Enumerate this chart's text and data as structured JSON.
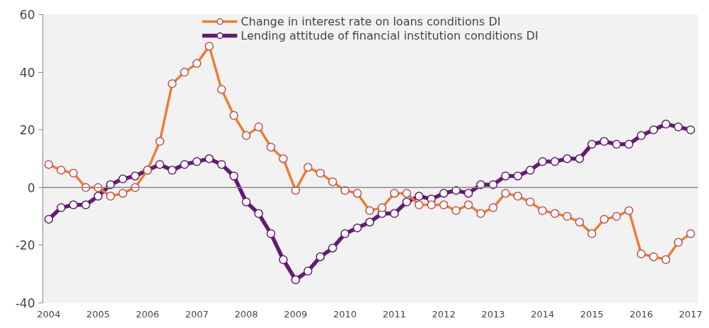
{
  "chart_data": {
    "type": "line",
    "x": [
      2004,
      2004.25,
      2004.5,
      2004.75,
      2005,
      2005.25,
      2005.5,
      2005.75,
      2006,
      2006.25,
      2006.5,
      2006.75,
      2007,
      2007.25,
      2007.5,
      2007.75,
      2008,
      2008.25,
      2008.5,
      2008.75,
      2009,
      2009.25,
      2009.5,
      2009.75,
      2010,
      2010.25,
      2010.5,
      2010.75,
      2011,
      2011.25,
      2011.5,
      2011.75,
      2012,
      2012.25,
      2012.5,
      2012.75,
      2013,
      2013.25,
      2013.5,
      2013.75,
      2014,
      2014.25,
      2014.5,
      2014.75,
      2015,
      2015.25,
      2015.5,
      2015.75,
      2016,
      2016.25,
      2016.5,
      2016.75,
      2017
    ],
    "series": [
      {
        "name": "Change in interest rate on loans conditions DI",
        "color": "#ed7d31",
        "values": [
          8,
          6,
          5,
          0,
          0,
          -3,
          -2,
          0,
          6,
          16,
          36,
          40,
          43,
          49,
          34,
          25,
          18,
          21,
          14,
          10,
          -1,
          7,
          5,
          2,
          -1,
          -2,
          -8,
          -7,
          -2,
          -2,
          -6,
          -6,
          -6,
          -8,
          -6,
          -9,
          -7,
          -2,
          -3,
          -5,
          -8,
          -9,
          -10,
          -12,
          -16,
          -11,
          -10,
          -8,
          -23,
          -24,
          -25,
          -19,
          -16
        ]
      },
      {
        "name": "Lending attitude of financial institution conditions DI",
        "color": "#621c73",
        "values": [
          -11,
          -7,
          -6,
          -6,
          -3,
          1,
          3,
          4,
          6,
          8,
          6,
          8,
          9,
          10,
          8,
          4,
          -5,
          -9,
          -16,
          -25,
          -32,
          -29,
          -24,
          -21,
          -16,
          -14,
          -12,
          -9,
          -9,
          -5,
          -3,
          -4,
          -2,
          -1,
          -2,
          1,
          1,
          4,
          4,
          6,
          9,
          9,
          10,
          10,
          15,
          16,
          15,
          15,
          18,
          20,
          22,
          21,
          20
        ]
      }
    ],
    "xlim": [
      2003.88,
      2017.15
    ],
    "xticks": [
      2004,
      2005,
      2006,
      2007,
      2008,
      2009,
      2010,
      2011,
      2012,
      2013,
      2014,
      2015,
      2016,
      2017
    ],
    "ylim": [
      -40,
      60
    ],
    "yticks": [
      -40,
      -20,
      0,
      20,
      40,
      60
    ],
    "ref_lines": [
      {
        "axis": "y",
        "value": 0,
        "color": "#888888"
      }
    ],
    "marker": "circle",
    "line_style": "solid",
    "legend": "top",
    "grid": false
  }
}
